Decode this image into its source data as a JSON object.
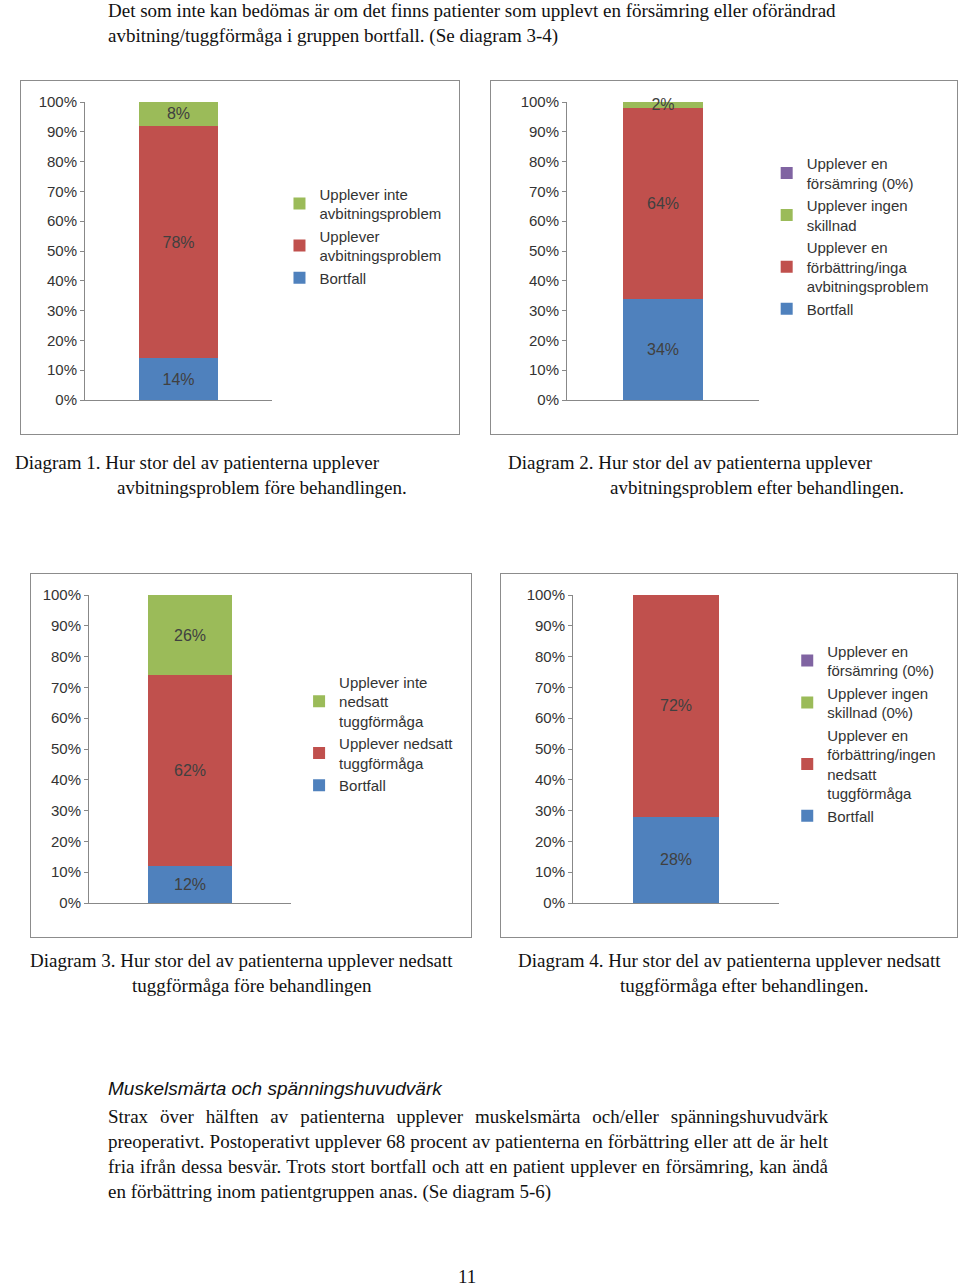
{
  "intro": "Det som inte kan bedömas är om det finns patienter som upplevt en försämring eller oförändrad avbitning/tuggförmåga i gruppen bortfall. (Se diagram 3-4)",
  "chart_data": [
    {
      "type": "bar",
      "stacked": true,
      "title": "Diagram 1. Hur stor del av patienterna upplever avbitningsproblem före behandlingen.",
      "categories": [
        null
      ],
      "ylim": [
        0,
        100
      ],
      "yticks": [
        {
          "value": 0,
          "label": "0%"
        },
        {
          "value": 10,
          "label": "10%"
        },
        {
          "value": 20,
          "label": "20%"
        },
        {
          "value": 30,
          "label": "30%"
        },
        {
          "value": 40,
          "label": "40%"
        },
        {
          "value": 50,
          "label": "50%"
        },
        {
          "value": 60,
          "label": "60%"
        },
        {
          "value": 70,
          "label": "70%"
        },
        {
          "value": 80,
          "label": "80%"
        },
        {
          "value": 90,
          "label": "90%"
        },
        {
          "value": 100,
          "label": "100%"
        }
      ],
      "grid": false,
      "legend": "right",
      "data_labels": true,
      "series": [
        {
          "name": "Bortfall",
          "color": "#4f81bd",
          "values": [
            14
          ],
          "value_labels": [
            "14%"
          ]
        },
        {
          "name": "Upplever avbitningsproblem",
          "color": "#c0504d",
          "values": [
            78
          ],
          "value_labels": [
            "78%"
          ]
        },
        {
          "name": "Upplever inte avbitningsproblem",
          "color": "#9bbb59",
          "values": [
            8
          ],
          "value_labels": [
            "8%"
          ]
        }
      ]
    },
    {
      "type": "bar",
      "stacked": true,
      "title": "Diagram 2. Hur stor del av patienterna upplever avbitningsproblem efter behandlingen.",
      "categories": [
        null
      ],
      "ylim": [
        0,
        100
      ],
      "yticks": [
        {
          "value": 0,
          "label": "0%"
        },
        {
          "value": 10,
          "label": "10%"
        },
        {
          "value": 20,
          "label": "20%"
        },
        {
          "value": 30,
          "label": "30%"
        },
        {
          "value": 40,
          "label": "40%"
        },
        {
          "value": 50,
          "label": "50%"
        },
        {
          "value": 60,
          "label": "60%"
        },
        {
          "value": 70,
          "label": "70%"
        },
        {
          "value": 80,
          "label": "80%"
        },
        {
          "value": 90,
          "label": "90%"
        },
        {
          "value": 100,
          "label": "100%"
        }
      ],
      "grid": false,
      "legend": "right",
      "data_labels": true,
      "series": [
        {
          "name": "Bortfall",
          "color": "#4f81bd",
          "values": [
            34
          ],
          "value_labels": [
            "34%"
          ]
        },
        {
          "name": "Upplever en förbättring/inga avbitningsproblem",
          "color": "#c0504d",
          "values": [
            64
          ],
          "value_labels": [
            "64%"
          ]
        },
        {
          "name": "Upplever ingen skillnad",
          "color": "#9bbb59",
          "values": [
            2
          ],
          "value_labels": [
            "2%"
          ]
        },
        {
          "name": "Upplever en försämring (0%)",
          "color": "#8064a2",
          "values": [
            0
          ],
          "value_labels": [
            null
          ]
        }
      ]
    },
    {
      "type": "bar",
      "stacked": true,
      "title": "Diagram 3. Hur stor del av patienterna upplever nedsatt tuggförmåga före behandlingen",
      "categories": [
        null
      ],
      "ylim": [
        0,
        100
      ],
      "yticks": [
        {
          "value": 0,
          "label": "0%"
        },
        {
          "value": 10,
          "label": "10%"
        },
        {
          "value": 20,
          "label": "20%"
        },
        {
          "value": 30,
          "label": "30%"
        },
        {
          "value": 40,
          "label": "40%"
        },
        {
          "value": 50,
          "label": "50%"
        },
        {
          "value": 60,
          "label": "60%"
        },
        {
          "value": 70,
          "label": "70%"
        },
        {
          "value": 80,
          "label": "80%"
        },
        {
          "value": 90,
          "label": "90%"
        },
        {
          "value": 100,
          "label": "100%"
        }
      ],
      "grid": false,
      "legend": "right",
      "data_labels": true,
      "series": [
        {
          "name": "Bortfall",
          "color": "#4f81bd",
          "values": [
            12
          ],
          "value_labels": [
            "12%"
          ]
        },
        {
          "name": "Upplever nedsatt tuggförmåga",
          "color": "#c0504d",
          "values": [
            62
          ],
          "value_labels": [
            "62%"
          ]
        },
        {
          "name": "Upplever inte nedsatt tuggförmåga",
          "color": "#9bbb59",
          "values": [
            26
          ],
          "value_labels": [
            "26%"
          ]
        }
      ]
    },
    {
      "type": "bar",
      "stacked": true,
      "title": "Diagram 4. Hur stor del av patienterna upplever nedsatt tuggförmåga efter behandlingen.",
      "categories": [
        null
      ],
      "ylim": [
        0,
        100
      ],
      "yticks": [
        {
          "value": 0,
          "label": "0%"
        },
        {
          "value": 10,
          "label": "10%"
        },
        {
          "value": 20,
          "label": "20%"
        },
        {
          "value": 30,
          "label": "30%"
        },
        {
          "value": 40,
          "label": "40%"
        },
        {
          "value": 50,
          "label": "50%"
        },
        {
          "value": 60,
          "label": "60%"
        },
        {
          "value": 70,
          "label": "70%"
        },
        {
          "value": 80,
          "label": "80%"
        },
        {
          "value": 90,
          "label": "90%"
        },
        {
          "value": 100,
          "label": "100%"
        }
      ],
      "grid": false,
      "legend": "right",
      "data_labels": true,
      "series": [
        {
          "name": "Bortfall",
          "color": "#4f81bd",
          "values": [
            28
          ],
          "value_labels": [
            "28%"
          ]
        },
        {
          "name": "Upplever en förbättring/ingen nedsatt tuggförmåga",
          "color": "#c0504d",
          "values": [
            72
          ],
          "value_labels": [
            "72%"
          ]
        },
        {
          "name": "Upplever ingen skillnad (0%)",
          "color": "#9bbb59",
          "values": [
            0
          ],
          "value_labels": [
            null
          ]
        },
        {
          "name": "Upplever en försämring (0%)",
          "color": "#8064a2",
          "values": [
            0
          ],
          "value_labels": [
            null
          ]
        }
      ]
    }
  ],
  "section": {
    "heading": "Muskelsmärta och spänningshuvudvärk",
    "text": "Strax över hälften av patienterna upplever muskelsmärta och/eller spänningshuvudvärk preoperativt. Postoperativt upplever 68 procent av patienterna en förbättring eller att de är helt fria ifrån dessa besvär. Trots stort bortfall och att en patient upplever en försämring, kan ändå en förbättring inom patientgruppen anas. (Se diagram 5-6)"
  },
  "page_number": "11"
}
